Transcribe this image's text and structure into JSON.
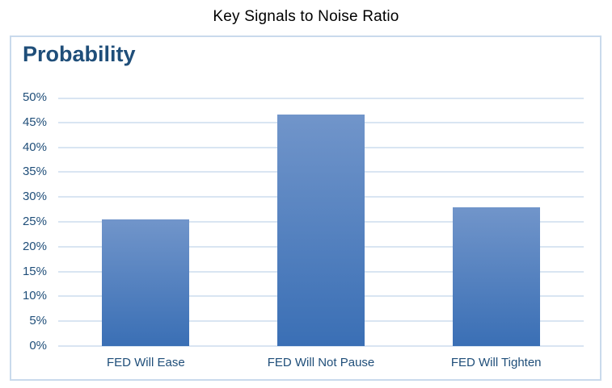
{
  "chart_data": {
    "type": "bar",
    "title": "Key Signals to Noise Ratio",
    "ylabel": "Probability",
    "xlabel": "",
    "categories": [
      "FED Will Ease",
      "FED Will Not Pause",
      "FED Will Tighten"
    ],
    "values": [
      25.5,
      46.6,
      27.9
    ],
    "ylim": [
      0,
      50
    ],
    "ytick_step": 5,
    "ytick_suffix": "%",
    "grid": true,
    "legend": false,
    "bar_width_ratio": 0.5,
    "colors": {
      "background": "#FFFFFF",
      "title_text": "#000000",
      "axis_text": "#1F4E79",
      "gridline": "#D9E5F2",
      "chart_border": "#C9DAEC",
      "bar_gradient_top": "#7195CA",
      "bar_gradient_bottom": "#3A6FB5"
    }
  }
}
